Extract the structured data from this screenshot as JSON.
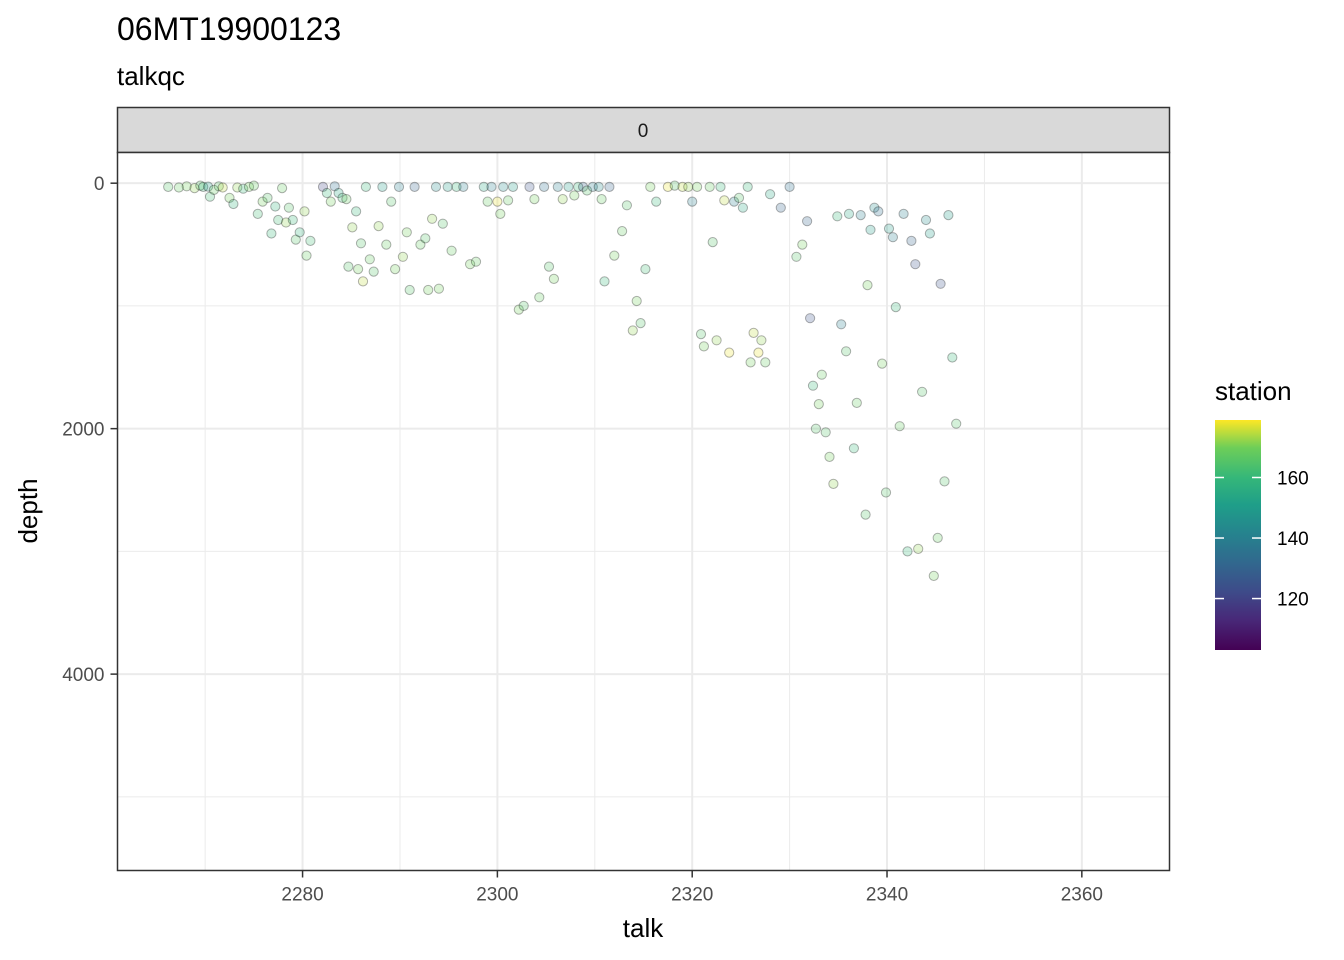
{
  "chart_data": {
    "type": "scatter",
    "title": "06MT19900123",
    "subtitle": "talkqc",
    "facet_label": "0",
    "xlabel": "talk",
    "ylabel": "depth",
    "xlim": [
      2261,
      2369
    ],
    "ylim": [
      5600,
      -250
    ],
    "y_reversed": true,
    "x_ticks": [
      2280,
      2300,
      2320,
      2340,
      2360
    ],
    "y_ticks": [
      0,
      2000,
      4000
    ],
    "x_ticks_labels": [
      "2280",
      "2300",
      "2320",
      "2340",
      "2360"
    ],
    "y_ticks_labels": [
      "0",
      "2000",
      "4000"
    ],
    "grid": true,
    "legend": {
      "title": "station",
      "position": "right",
      "ticks": [
        120,
        140,
        160
      ],
      "tick_labels": [
        "120",
        "140",
        "160"
      ],
      "range": [
        103,
        179
      ]
    },
    "colors": {
      "palette": "viridis",
      "low": "#440154",
      "mid": "#21918c",
      "high": "#fde725",
      "point_alpha": 0.25
    },
    "points": [
      [
        2266.2,
        30,
        165
      ],
      [
        2267.3,
        35,
        168
      ],
      [
        2268.1,
        25,
        170
      ],
      [
        2268.9,
        40,
        172
      ],
      [
        2269.5,
        20,
        165
      ],
      [
        2269.8,
        30,
        160
      ],
      [
        2270.3,
        28,
        150
      ],
      [
        2270.5,
        110,
        162
      ],
      [
        2270.9,
        55,
        168
      ],
      [
        2271.4,
        25,
        166
      ],
      [
        2271.8,
        35,
        175
      ],
      [
        2272.5,
        120,
        170
      ],
      [
        2272.9,
        170,
        158
      ],
      [
        2273.3,
        35,
        172
      ],
      [
        2273.9,
        45,
        160
      ],
      [
        2274.5,
        30,
        170
      ],
      [
        2275.0,
        20,
        168
      ],
      [
        2275.4,
        250,
        162
      ],
      [
        2275.9,
        150,
        170
      ],
      [
        2276.4,
        120,
        165
      ],
      [
        2276.8,
        410,
        160
      ],
      [
        2277.2,
        190,
        158
      ],
      [
        2277.5,
        300,
        162
      ],
      [
        2277.9,
        40,
        168
      ],
      [
        2278.3,
        320,
        172
      ],
      [
        2278.6,
        200,
        165
      ],
      [
        2279.0,
        300,
        160
      ],
      [
        2279.3,
        460,
        165
      ],
      [
        2279.7,
        400,
        158
      ],
      [
        2280.2,
        230,
        172
      ],
      [
        2280.4,
        590,
        168
      ],
      [
        2280.8,
        470,
        162
      ],
      [
        2282.1,
        30,
        120
      ],
      [
        2282.5,
        80,
        160
      ],
      [
        2282.9,
        150,
        170
      ],
      [
        2283.3,
        25,
        135
      ],
      [
        2283.7,
        80,
        155
      ],
      [
        2284.1,
        120,
        162
      ],
      [
        2284.5,
        130,
        168
      ],
      [
        2284.7,
        680,
        165
      ],
      [
        2285.1,
        360,
        172
      ],
      [
        2285.5,
        230,
        160
      ],
      [
        2285.7,
        700,
        170
      ],
      [
        2286.0,
        490,
        165
      ],
      [
        2286.2,
        800,
        175
      ],
      [
        2286.5,
        30,
        160
      ],
      [
        2286.9,
        620,
        168
      ],
      [
        2287.3,
        720,
        165
      ],
      [
        2287.8,
        350,
        172
      ],
      [
        2288.2,
        30,
        150
      ],
      [
        2288.6,
        500,
        168
      ],
      [
        2289.1,
        150,
        165
      ],
      [
        2289.5,
        700,
        170
      ],
      [
        2289.9,
        30,
        140
      ],
      [
        2290.3,
        600,
        172
      ],
      [
        2290.7,
        400,
        170
      ],
      [
        2291.0,
        870,
        165
      ],
      [
        2291.5,
        30,
        130
      ],
      [
        2292.1,
        500,
        168
      ],
      [
        2292.6,
        450,
        165
      ],
      [
        2292.9,
        870,
        170
      ],
      [
        2293.3,
        290,
        172
      ],
      [
        2293.7,
        30,
        145
      ],
      [
        2294.0,
        860,
        170
      ],
      [
        2294.4,
        330,
        165
      ],
      [
        2294.9,
        30,
        150
      ],
      [
        2295.3,
        550,
        168
      ],
      [
        2295.8,
        30,
        160
      ],
      [
        2296.5,
        30,
        140
      ],
      [
        2297.2,
        660,
        170
      ],
      [
        2297.8,
        640,
        168
      ],
      [
        2298.6,
        30,
        155
      ],
      [
        2299.0,
        150,
        168
      ],
      [
        2299.4,
        30,
        140
      ],
      [
        2300.0,
        150,
        178
      ],
      [
        2300.3,
        250,
        170
      ],
      [
        2300.6,
        30,
        145
      ],
      [
        2301.1,
        140,
        168
      ],
      [
        2301.6,
        30,
        150
      ],
      [
        2302.2,
        1030,
        170
      ],
      [
        2302.7,
        1000,
        165
      ],
      [
        2303.3,
        30,
        125
      ],
      [
        2303.8,
        130,
        170
      ],
      [
        2304.3,
        930,
        168
      ],
      [
        2304.8,
        30,
        135
      ],
      [
        2305.3,
        680,
        165
      ],
      [
        2305.8,
        780,
        170
      ],
      [
        2306.2,
        30,
        140
      ],
      [
        2306.7,
        130,
        172
      ],
      [
        2307.3,
        30,
        150
      ],
      [
        2307.9,
        100,
        170
      ],
      [
        2308.3,
        30,
        160
      ],
      [
        2308.8,
        30,
        130
      ],
      [
        2309.2,
        60,
        165
      ],
      [
        2309.8,
        30,
        140
      ],
      [
        2310.4,
        30,
        145
      ],
      [
        2310.7,
        130,
        168
      ],
      [
        2311.0,
        800,
        160
      ],
      [
        2311.5,
        30,
        130
      ],
      [
        2312.0,
        590,
        170
      ],
      [
        2312.8,
        390,
        168
      ],
      [
        2313.3,
        180,
        165
      ],
      [
        2313.9,
        1200,
        172
      ],
      [
        2314.3,
        960,
        170
      ],
      [
        2314.7,
        1140,
        165
      ],
      [
        2315.2,
        700,
        162
      ],
      [
        2315.7,
        30,
        170
      ],
      [
        2316.3,
        150,
        160
      ],
      [
        2317.5,
        30,
        178
      ],
      [
        2318.2,
        20,
        165
      ],
      [
        2319.0,
        30,
        175
      ],
      [
        2319.6,
        30,
        172
      ],
      [
        2320.0,
        150,
        140
      ],
      [
        2320.5,
        30,
        170
      ],
      [
        2320.9,
        1230,
        165
      ],
      [
        2321.2,
        1330,
        170
      ],
      [
        2321.8,
        30,
        168
      ],
      [
        2322.1,
        480,
        165
      ],
      [
        2322.5,
        1280,
        172
      ],
      [
        2322.9,
        30,
        160
      ],
      [
        2323.3,
        140,
        175
      ],
      [
        2323.8,
        1380,
        178
      ],
      [
        2324.3,
        150,
        140
      ],
      [
        2324.8,
        120,
        165
      ],
      [
        2325.2,
        200,
        155
      ],
      [
        2325.7,
        30,
        160
      ],
      [
        2326.0,
        1460,
        170
      ],
      [
        2326.3,
        1220,
        175
      ],
      [
        2326.8,
        1380,
        178
      ],
      [
        2327.1,
        1280,
        172
      ],
      [
        2327.5,
        1460,
        168
      ],
      [
        2328.0,
        90,
        155
      ],
      [
        2329.1,
        200,
        130
      ],
      [
        2330.0,
        30,
        135
      ],
      [
        2330.7,
        600,
        165
      ],
      [
        2331.3,
        500,
        170
      ],
      [
        2331.8,
        310,
        130
      ],
      [
        2332.1,
        1100,
        125
      ],
      [
        2332.4,
        1650,
        160
      ],
      [
        2332.7,
        2000,
        165
      ],
      [
        2333.0,
        1800,
        170
      ],
      [
        2333.3,
        1560,
        168
      ],
      [
        2333.7,
        2030,
        165
      ],
      [
        2334.1,
        2230,
        170
      ],
      [
        2334.5,
        2450,
        172
      ],
      [
        2334.9,
        270,
        160
      ],
      [
        2335.3,
        1150,
        140
      ],
      [
        2335.8,
        1370,
        165
      ],
      [
        2336.1,
        250,
        155
      ],
      [
        2336.6,
        2160,
        160
      ],
      [
        2336.9,
        1790,
        168
      ],
      [
        2337.3,
        260,
        140
      ],
      [
        2337.8,
        2700,
        165
      ],
      [
        2338.0,
        830,
        170
      ],
      [
        2338.3,
        380,
        150
      ],
      [
        2338.7,
        200,
        145
      ],
      [
        2339.1,
        230,
        135
      ],
      [
        2339.5,
        1470,
        170
      ],
      [
        2339.9,
        2520,
        165
      ],
      [
        2340.2,
        370,
        150
      ],
      [
        2340.6,
        440,
        140
      ],
      [
        2340.9,
        1010,
        160
      ],
      [
        2341.3,
        1980,
        168
      ],
      [
        2341.7,
        250,
        140
      ],
      [
        2342.1,
        3000,
        160
      ],
      [
        2342.5,
        470,
        130
      ],
      [
        2342.9,
        660,
        125
      ],
      [
        2343.2,
        2980,
        172
      ],
      [
        2343.6,
        1700,
        165
      ],
      [
        2344.0,
        300,
        145
      ],
      [
        2344.4,
        410,
        150
      ],
      [
        2344.8,
        3200,
        170
      ],
      [
        2345.2,
        2890,
        168
      ],
      [
        2345.5,
        820,
        125
      ],
      [
        2345.9,
        2430,
        165
      ],
      [
        2346.3,
        260,
        150
      ],
      [
        2346.7,
        1420,
        160
      ],
      [
        2347.1,
        1960,
        165
      ]
    ]
  }
}
